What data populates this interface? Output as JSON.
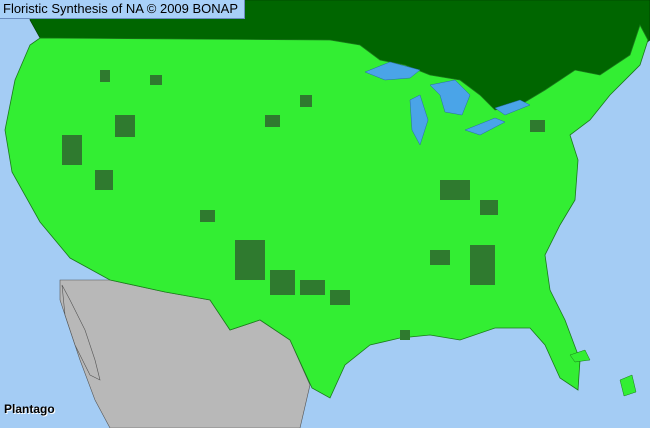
{
  "header": {
    "title": "Floristic Synthesis of NA © 2009 BONAP"
  },
  "map": {
    "taxon": "Plantago",
    "colors": {
      "ocean": "#a4ccf4",
      "canada": "#006600",
      "present_county": "#33ee33",
      "dark_county": "#2f7a2f",
      "mexico": "#b8b8b8",
      "lakes": "#4aa4e8"
    }
  }
}
